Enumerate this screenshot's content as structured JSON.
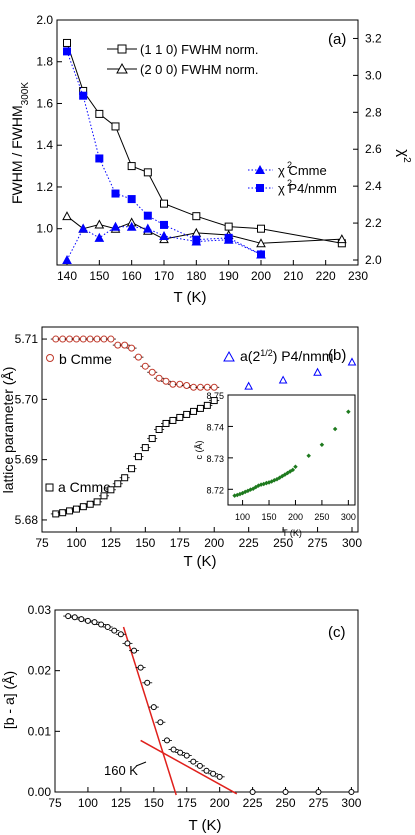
{
  "chart_data": [
    {
      "id": "a",
      "type": "line",
      "panel_label": "(a)",
      "xlabel": "T (K)",
      "ylabel": "FWHM / FWHM",
      "ylabel_sub": "300K",
      "y2label": "χ",
      "y2label_sup": "2",
      "xlim": [
        140,
        230
      ],
      "ylim": [
        0.85,
        2.0
      ],
      "y2lim": [
        2.0,
        3.3
      ],
      "xticks": [
        "140",
        "150",
        "160",
        "170",
        "180",
        "190",
        "200",
        "210",
        "220",
        "230"
      ],
      "yticks": [
        "0.8",
        "1.0",
        "1.2",
        "1.4",
        "1.6",
        "1.8",
        "2.0"
      ],
      "y2ticks": [
        "2.0",
        "2.2",
        "2.4",
        "2.6",
        "2.8",
        "3.0",
        "3.2"
      ],
      "series": [
        {
          "name": "(1 1 0) FWHM norm.",
          "axis": "left",
          "marker": "open-square",
          "color": "#000000",
          "x": [
            140,
            145,
            150,
            155,
            160,
            165,
            170,
            180,
            190,
            200,
            225
          ],
          "y": [
            1.89,
            1.66,
            1.55,
            1.49,
            1.3,
            1.27,
            1.12,
            1.06,
            1.01,
            1.0,
            0.93
          ]
        },
        {
          "name": "(2 0 0) FWHM norm.",
          "axis": "left",
          "marker": "open-triangle",
          "color": "#000000",
          "x": [
            140,
            145,
            150,
            155,
            160,
            165,
            170,
            180,
            190,
            200,
            225
          ],
          "y": [
            1.06,
            1.0,
            1.02,
            1.0,
            1.03,
            0.99,
            0.95,
            0.98,
            0.97,
            0.93,
            0.95
          ]
        },
        {
          "name": "χ Cmme",
          "name_sup": "2",
          "axis": "right",
          "marker": "filled-triangle",
          "color": "#0000ff",
          "x": [
            140,
            145,
            150,
            155,
            160,
            165,
            170,
            180,
            190,
            200
          ],
          "y": [
            2.0,
            2.17,
            2.12,
            2.18,
            2.18,
            2.17,
            2.13,
            2.1,
            2.11,
            2.03
          ]
        },
        {
          "name": "χ P4/nmm",
          "name_sup": "2",
          "axis": "right",
          "marker": "filled-square",
          "color": "#0000ff",
          "x": [
            140,
            145,
            150,
            155,
            160,
            165,
            170,
            180,
            190,
            200
          ],
          "y": [
            3.13,
            2.89,
            2.55,
            2.36,
            2.33,
            2.24,
            2.19,
            2.11,
            2.12,
            2.03
          ]
        }
      ]
    },
    {
      "id": "b",
      "type": "scatter",
      "panel_label": "(b)",
      "xlabel": "T (K)",
      "ylabel": "lattice parameter (Å)",
      "xlim": [
        75,
        300
      ],
      "ylim": [
        5.678,
        5.712
      ],
      "xticks": [
        "75",
        "100",
        "125",
        "150",
        "175",
        "200",
        "225",
        "250",
        "275",
        "300"
      ],
      "yticks": [
        "5.68",
        "5.69",
        "5.70",
        "5.71"
      ],
      "annotations": [
        "b Cmme",
        "a(2",
        "1/2",
        ")  P4/nmm",
        "a Cmme"
      ],
      "series": [
        {
          "name": "b Cmme",
          "marker": "open-circle",
          "color": "#c0392b",
          "x": [
            85,
            90,
            95,
            100,
            105,
            110,
            115,
            120,
            125,
            130,
            135,
            140,
            145,
            150,
            155,
            160,
            165,
            170,
            175,
            180,
            185,
            190,
            195,
            200
          ],
          "y": [
            5.71,
            5.71,
            5.71,
            5.71,
            5.71,
            5.71,
            5.71,
            5.71,
            5.71,
            5.709,
            5.709,
            5.7085,
            5.707,
            5.7055,
            5.7045,
            5.7035,
            5.703,
            5.7025,
            5.7025,
            5.7023,
            5.702,
            5.702,
            5.702,
            5.702
          ]
        },
        {
          "name": "a Cmme",
          "marker": "open-square",
          "color": "#000000",
          "x": [
            85,
            90,
            95,
            100,
            105,
            110,
            115,
            120,
            125,
            130,
            135,
            140,
            145,
            150,
            155,
            160,
            165,
            170,
            175,
            180,
            185,
            190,
            195,
            200
          ],
          "y": [
            5.681,
            5.6812,
            5.6815,
            5.6818,
            5.6822,
            5.6826,
            5.683,
            5.684,
            5.685,
            5.686,
            5.687,
            5.6885,
            5.6905,
            5.692,
            5.6935,
            5.695,
            5.696,
            5.6965,
            5.697,
            5.6975,
            5.698,
            5.6985,
            5.699,
            5.6998
          ]
        },
        {
          "name": "a(2^(1/2)) P4/nmm",
          "marker": "open-triangle",
          "color": "#0000ff",
          "x": [
            225,
            250,
            275,
            300
          ],
          "y": [
            5.7022,
            5.7032,
            5.7045,
            5.7062
          ]
        }
      ],
      "inset": {
        "xlabel": "T (K)",
        "ylabel": "c (Å)",
        "xlim": [
          80,
          305
        ],
        "ylim": [
          8.715,
          8.75
        ],
        "xticks": [
          "100",
          "150",
          "200",
          "250",
          "300"
        ],
        "yticks": [
          "8.72",
          "8.73",
          "8.74",
          "8.75"
        ],
        "color": "#1e7a1e",
        "x": [
          85,
          90,
          95,
          100,
          105,
          110,
          115,
          120,
          125,
          130,
          135,
          140,
          145,
          150,
          155,
          160,
          165,
          170,
          175,
          180,
          185,
          190,
          195,
          200,
          225,
          250,
          275,
          300
        ],
        "y": [
          8.7178,
          8.718,
          8.7183,
          8.7186,
          8.719,
          8.7193,
          8.7197,
          8.72,
          8.7205,
          8.721,
          8.7213,
          8.7215,
          8.7218,
          8.722,
          8.7223,
          8.7227,
          8.723,
          8.7235,
          8.724,
          8.7245,
          8.725,
          8.7255,
          8.726,
          8.727,
          8.7305,
          8.734,
          8.739,
          8.7445
        ]
      }
    },
    {
      "id": "c",
      "type": "scatter",
      "panel_label": "(c)",
      "xlabel": "T (K)",
      "ylabel": "[b - a] (Å)",
      "xlim": [
        75,
        305
      ],
      "ylim": [
        0,
        0.03
      ],
      "xticks": [
        "75",
        "100",
        "125",
        "150",
        "175",
        "200",
        "225",
        "250",
        "275",
        "300"
      ],
      "yticks": [
        "0.00",
        "0.01",
        "0.02",
        "0.03"
      ],
      "annotation": "160 K",
      "fit_color": "#e0201c",
      "series": [
        {
          "name": "b - a",
          "marker": "open-circle",
          "color": "#000000",
          "x": [
            85,
            90,
            95,
            100,
            105,
            110,
            115,
            120,
            125,
            130,
            135,
            140,
            145,
            150,
            155,
            160,
            165,
            170,
            175,
            180,
            185,
            190,
            195,
            200,
            225,
            250,
            275,
            300
          ],
          "y": [
            0.029,
            0.0288,
            0.0285,
            0.0282,
            0.028,
            0.0276,
            0.0272,
            0.0266,
            0.026,
            0.0245,
            0.0233,
            0.0205,
            0.018,
            0.014,
            0.0115,
            0.0085,
            0.007,
            0.0065,
            0.006,
            0.005,
            0.0043,
            0.0035,
            0.003,
            0.0025,
            0,
            0,
            0,
            0
          ]
        }
      ],
      "fits": [
        {
          "x": [
            127,
            167
          ],
          "y": [
            0.0272,
            -0.0005
          ]
        },
        {
          "x": [
            140,
            213
          ],
          "y": [
            0.0085,
            -0.0003
          ]
        }
      ]
    }
  ]
}
